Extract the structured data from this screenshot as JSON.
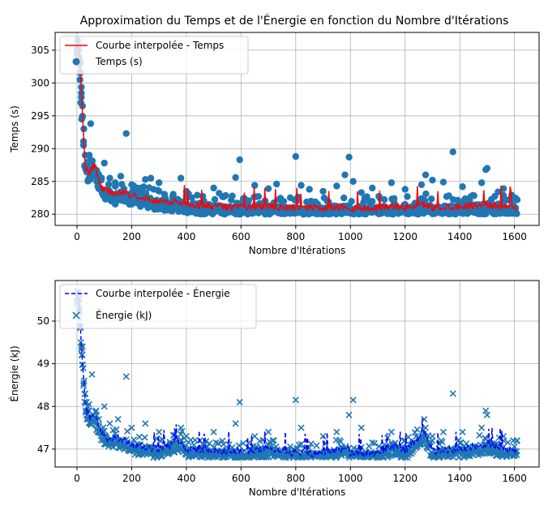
{
  "chart_data": [
    {
      "type": "scatter",
      "title": "Approximation du Temps et de l'Énergie en fonction du Nombre d'Itérations",
      "xlabel": "Nombre d'Itérations",
      "ylabel": "Temps (s)",
      "xlim": [
        -80,
        1690
      ],
      "ylim": [
        278.3,
        307.7
      ],
      "xticks": [
        0,
        200,
        400,
        600,
        800,
        1000,
        1200,
        1400,
        1600
      ],
      "yticks": [
        280,
        285,
        290,
        295,
        300,
        305
      ],
      "grid": true,
      "legend_position": "top-left",
      "legend": [
        "Courbe interpolée - Temps",
        "Temps (s)"
      ],
      "colors": {
        "line": "#ff0000",
        "markers": "#1f77b4"
      },
      "line_style": "solid",
      "marker": "circle",
      "points_x_max": 1610,
      "series": [
        {
          "name": "Temps (s)",
          "kind": "scatter",
          "x": [
            2,
            5,
            8,
            11,
            14,
            17,
            20,
            25,
            30,
            35,
            40,
            45,
            50,
            55,
            60,
            70,
            80,
            90,
            100,
            120,
            140,
            160,
            180,
            200,
            230,
            250,
            270,
            300,
            320,
            350,
            380,
            400,
            420,
            460,
            500,
            520,
            580,
            595,
            650,
            700,
            730,
            800,
            820,
            850,
            900,
            950,
            980,
            995,
            1010,
            1040,
            1080,
            1150,
            1160,
            1200,
            1260,
            1275,
            1300,
            1340,
            1375,
            1410,
            1480,
            1495,
            1500,
            1540,
            1560,
            1590,
            1610
          ],
          "y": [
            306.5,
            305,
            303.5,
            300.5,
            297,
            294.5,
            296.5,
            293,
            289,
            287.5,
            288,
            289,
            293.8,
            288,
            287.2,
            286.2,
            286,
            285.5,
            287.8,
            285.5,
            284.8,
            285.8,
            292.3,
            284.5,
            283.2,
            285.3,
            285.5,
            284.8,
            283,
            282.7,
            285.5,
            283.5,
            282.5,
            281.8,
            284,
            283.2,
            285.6,
            288.3,
            284.4,
            283.9,
            284.6,
            288.8,
            284.4,
            283.8,
            283.5,
            284.3,
            286,
            288.7,
            285,
            283.3,
            284,
            284.8,
            282.4,
            283.8,
            284.5,
            286,
            285.2,
            284.9,
            289.5,
            284.2,
            284.8,
            286.8,
            287,
            283.4,
            283.9,
            282.9,
            282.2
          ]
        },
        {
          "name": "Courbe interpolée - Temps",
          "kind": "line",
          "x": [
            5,
            10,
            15,
            20,
            25,
            30,
            35,
            40,
            50,
            60,
            70,
            80,
            90,
            100,
            120,
            140,
            160,
            180,
            200,
            250,
            300,
            380,
            400,
            500,
            600,
            700,
            800,
            900,
            990,
            1000,
            1100,
            1160,
            1200,
            1270,
            1300,
            1400,
            1500,
            1600
          ],
          "y": [
            305.5,
            303,
            300,
            295,
            291,
            286.5,
            287.5,
            286,
            286.5,
            287.5,
            286.8,
            285,
            284,
            283.8,
            283.5,
            283,
            283.4,
            283.2,
            282.8,
            282.5,
            282,
            281.8,
            281.5,
            281.3,
            281,
            281.2,
            280.9,
            281,
            281.2,
            280.8,
            281,
            281.3,
            281,
            281.5,
            281,
            281.2,
            281.5,
            281
          ]
        }
      ]
    },
    {
      "type": "scatter",
      "xlabel": "Nombre d'Itérations",
      "ylabel": "Énergie (kJ)",
      "xlim": [
        -80,
        1690
      ],
      "ylim": [
        46.58,
        50.95
      ],
      "xticks": [
        0,
        200,
        400,
        600,
        800,
        1000,
        1200,
        1400,
        1600
      ],
      "yticks": [
        47,
        48,
        49,
        50
      ],
      "grid": true,
      "legend_position": "top-left",
      "legend": [
        "Courbe interpolée - Énergie",
        "Énergie (kJ)"
      ],
      "colors": {
        "line": "#0000ff",
        "markers": "#1f77b4"
      },
      "line_style": "dashed",
      "marker": "x",
      "points_x_max": 1610,
      "series": [
        {
          "name": "Énergie (kJ)",
          "kind": "scatter",
          "x": [
            2,
            5,
            8,
            11,
            14,
            17,
            20,
            23,
            26,
            30,
            35,
            40,
            45,
            50,
            55,
            60,
            70,
            80,
            100,
            120,
            150,
            180,
            200,
            250,
            300,
            380,
            400,
            450,
            500,
            580,
            595,
            650,
            700,
            720,
            800,
            820,
            900,
            950,
            995,
            1010,
            1040,
            1150,
            1200,
            1270,
            1275,
            1300,
            1340,
            1375,
            1410,
            1480,
            1495,
            1500,
            1560,
            1610
          ],
          "y": [
            50.7,
            50.5,
            50.2,
            49.9,
            49.5,
            49.2,
            49.4,
            48.9,
            48.6,
            48.3,
            48.1,
            48,
            47.9,
            47.6,
            48.75,
            47.8,
            47.9,
            47.7,
            48,
            47.6,
            47.7,
            48.7,
            47.5,
            47.6,
            47.4,
            47.5,
            47.3,
            47.2,
            47.4,
            47.6,
            48.1,
            47.3,
            47.4,
            47.2,
            48.15,
            47.5,
            47.3,
            47.4,
            47.8,
            48.15,
            47.5,
            47.4,
            47.2,
            47.7,
            47.5,
            47.3,
            47.4,
            48.3,
            47.4,
            47.5,
            47.9,
            47.8,
            47.3,
            47.2
          ]
        },
        {
          "name": "Courbe interpolée - Énergie",
          "kind": "line",
          "x": [
            5,
            10,
            15,
            20,
            25,
            30,
            35,
            40,
            50,
            60,
            70,
            80,
            90,
            100,
            120,
            140,
            160,
            180,
            200,
            250,
            300,
            380,
            400,
            500,
            600,
            700,
            800,
            900,
            990,
            1000,
            1100,
            1160,
            1200,
            1270,
            1300,
            1400,
            1500,
            1600
          ],
          "y": [
            50.6,
            50.2,
            49.6,
            49,
            48.6,
            48.1,
            47.8,
            47.9,
            47.7,
            47.8,
            47.7,
            47.5,
            47.4,
            47.3,
            47.2,
            47.3,
            47.2,
            47.2,
            47.1,
            47.05,
            47,
            47.2,
            47,
            46.95,
            46.95,
            47,
            46.9,
            46.9,
            47.05,
            46.9,
            46.9,
            47.1,
            46.95,
            47.4,
            46.95,
            47,
            47.1,
            46.95
          ]
        }
      ]
    }
  ]
}
